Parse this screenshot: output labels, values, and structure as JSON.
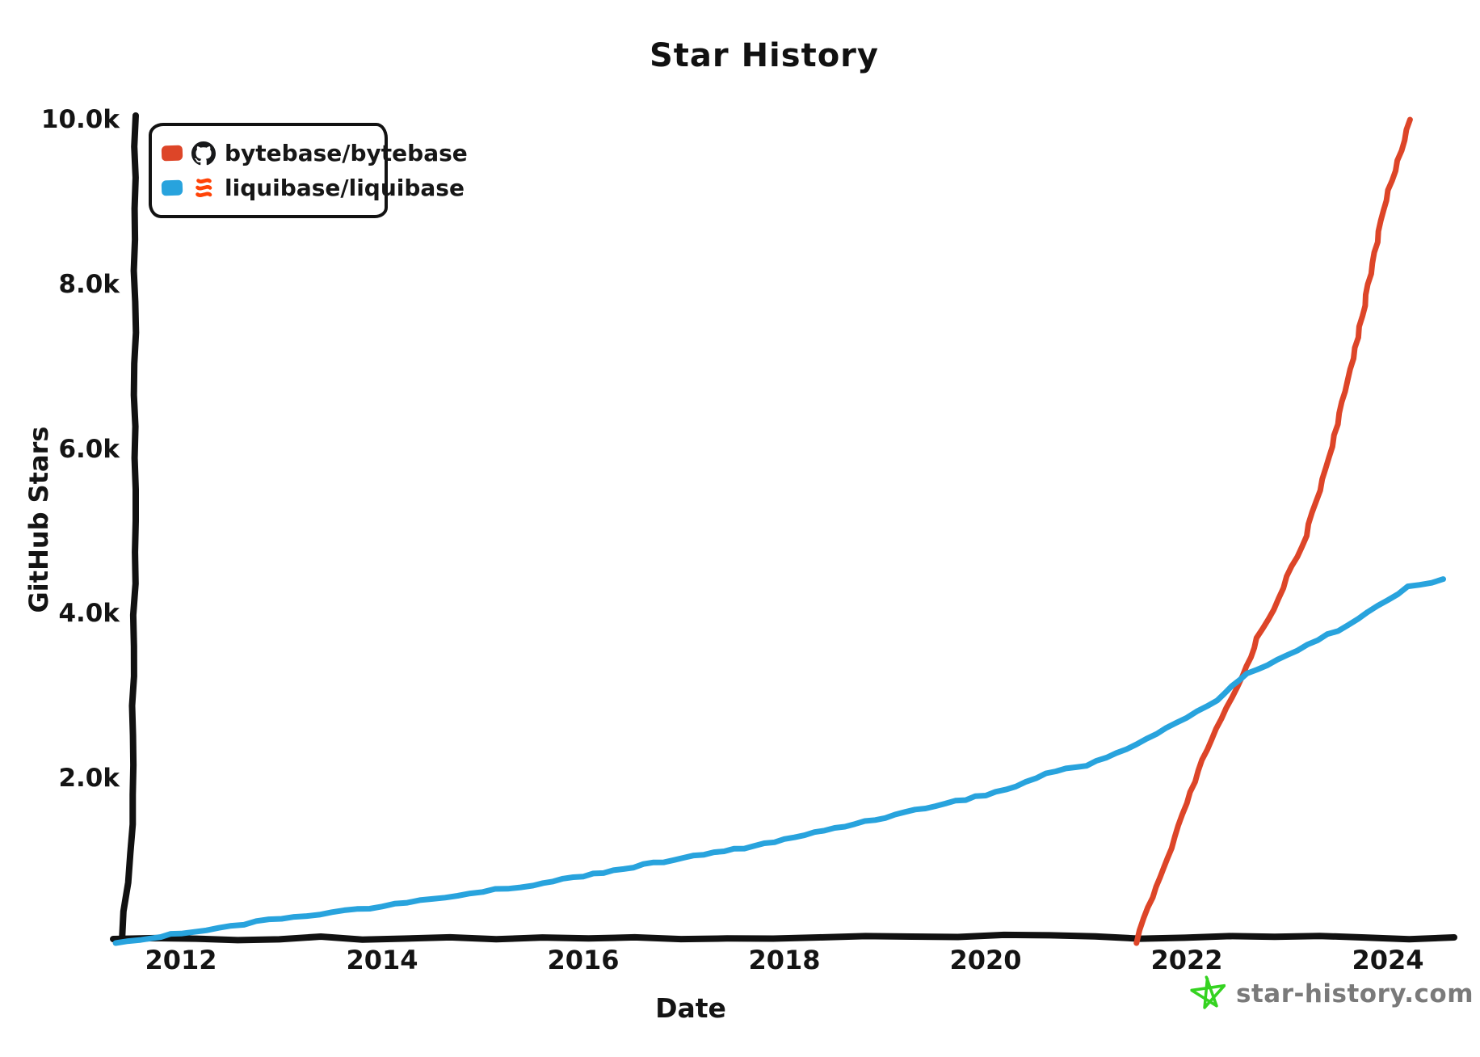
{
  "title": "Star History",
  "legend": {
    "items": [
      {
        "label": "bytebase/bytebase",
        "swatch_color": "#dd4528",
        "icon": "github-octocat-icon"
      },
      {
        "label": "liquibase/liquibase",
        "swatch_color": "#28a3dd",
        "icon": "liquibase-logo-icon"
      }
    ]
  },
  "watermark": {
    "text": "star-history.com",
    "icon": "green-star-icon",
    "text_color": "#7a7a7a",
    "star_color": "#35d321"
  },
  "colors": {
    "axis": "#111111",
    "bytebase_line": "#dd4528",
    "liquibase_line": "#28a3dd",
    "liquibase_logo_orange": "#ff4307"
  },
  "chart_data": {
    "type": "line",
    "title": "Star History",
    "xlabel": "Date",
    "ylabel": "GitHub Stars",
    "grid": false,
    "legend_position": "top-left",
    "xlim": [
      2011.3,
      2024.6
    ],
    "ylim": [
      0,
      10000
    ],
    "x_ticks": [
      {
        "label": "2012",
        "value": 2012
      },
      {
        "label": "2014",
        "value": 2014
      },
      {
        "label": "2016",
        "value": 2016
      },
      {
        "label": "2018",
        "value": 2018
      },
      {
        "label": "2020",
        "value": 2020
      },
      {
        "label": "2022",
        "value": 2022
      },
      {
        "label": "2024",
        "value": 2024
      }
    ],
    "y_ticks": [
      {
        "label": "2.0k",
        "value": 2000
      },
      {
        "label": "4.0k",
        "value": 4000
      },
      {
        "label": "6.0k",
        "value": 6000
      },
      {
        "label": "8.0k",
        "value": 8000
      },
      {
        "label": "10.0k",
        "value": 10000
      }
    ],
    "series": [
      {
        "name": "bytebase/bytebase",
        "color": "#dd4528",
        "points": [
          [
            2021.5,
            0
          ],
          [
            2021.58,
            300
          ],
          [
            2021.7,
            680
          ],
          [
            2021.85,
            1150
          ],
          [
            2022.0,
            1700
          ],
          [
            2022.2,
            2350
          ],
          [
            2022.4,
            2850
          ],
          [
            2022.56,
            3250
          ],
          [
            2022.7,
            3700
          ],
          [
            2022.86,
            4050
          ],
          [
            2023.0,
            4450
          ],
          [
            2023.15,
            4810
          ],
          [
            2023.32,
            5500
          ],
          [
            2023.5,
            6300
          ],
          [
            2023.65,
            7100
          ],
          [
            2023.81,
            8000
          ],
          [
            2023.95,
            8900
          ],
          [
            2024.1,
            9500
          ],
          [
            2024.22,
            10000
          ]
        ]
      },
      {
        "name": "liquibase/liquibase",
        "color": "#28a3dd",
        "points": [
          [
            2011.35,
            0
          ],
          [
            2011.6,
            45
          ],
          [
            2012.0,
            120
          ],
          [
            2012.5,
            210
          ],
          [
            2013.0,
            300
          ],
          [
            2013.5,
            375
          ],
          [
            2014.0,
            445
          ],
          [
            2014.5,
            535
          ],
          [
            2015.0,
            625
          ],
          [
            2015.5,
            705
          ],
          [
            2016.0,
            820
          ],
          [
            2016.5,
            925
          ],
          [
            2017.0,
            1035
          ],
          [
            2017.5,
            1135
          ],
          [
            2018.0,
            1255
          ],
          [
            2018.5,
            1395
          ],
          [
            2019.0,
            1530
          ],
          [
            2019.5,
            1670
          ],
          [
            2020.0,
            1800
          ],
          [
            2020.3,
            1900
          ],
          [
            2020.6,
            2060
          ],
          [
            2021.0,
            2160
          ],
          [
            2021.5,
            2410
          ],
          [
            2022.0,
            2740
          ],
          [
            2022.3,
            2950
          ],
          [
            2022.6,
            3270
          ],
          [
            2023.0,
            3500
          ],
          [
            2023.5,
            3800
          ],
          [
            2024.0,
            4160
          ],
          [
            2024.2,
            4320
          ],
          [
            2024.55,
            4420
          ]
        ]
      }
    ]
  }
}
